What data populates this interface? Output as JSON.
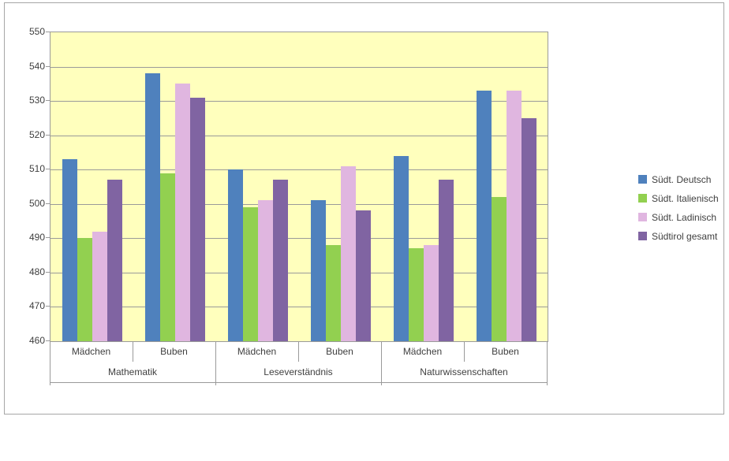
{
  "chart_data": {
    "type": "bar",
    "title": "",
    "xlabel": "",
    "ylabel": "",
    "ylim": [
      460,
      550
    ],
    "grid": true,
    "legend_position": "right",
    "plot_bg_color": "#ffffbd",
    "gridline_color": "#9a9a9a",
    "y_ticks": [
      "550",
      "540",
      "530",
      "520",
      "510",
      "500",
      "490",
      "480",
      "470",
      "460"
    ],
    "y_axis": {
      "min": 460,
      "max": 550,
      "step": 10
    },
    "category_groups": [
      {
        "label": "Mathematik",
        "subcategories": [
          "Mädchen",
          "Buben"
        ]
      },
      {
        "label": "Leseverständnis",
        "subcategories": [
          "Mädchen",
          "Buben"
        ]
      },
      {
        "label": "Naturwissenschaften",
        "subcategories": [
          "Mädchen",
          "Buben"
        ]
      }
    ],
    "categories": [
      "Mädchen",
      "Buben",
      "Mädchen",
      "Buben",
      "Mädchen",
      "Buben"
    ],
    "series": [
      {
        "name": "Südt. Deutsch",
        "color": "#4f81bd",
        "values": [
          513,
          538,
          510,
          501,
          514,
          533
        ]
      },
      {
        "name": "Südt. Italienisch",
        "color": "#92d050",
        "values": [
          490,
          509,
          499,
          488,
          487,
          502
        ]
      },
      {
        "name": "Südt. Ladinisch",
        "color": "#e0b6e0",
        "values": [
          492,
          535,
          501,
          511,
          488,
          533
        ]
      },
      {
        "name": "Südtirol gesamt",
        "color": "#8064a2",
        "values": [
          507,
          531,
          507,
          498,
          507,
          525
        ]
      }
    ]
  }
}
